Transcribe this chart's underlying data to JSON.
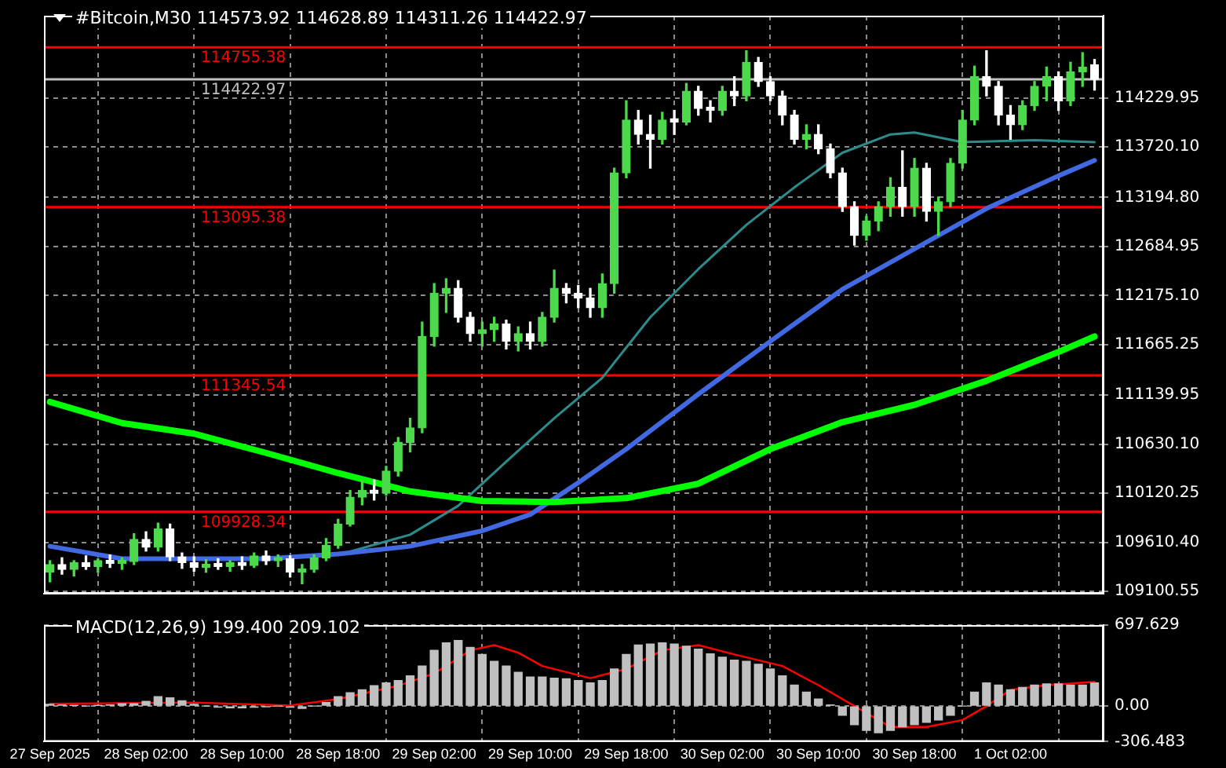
{
  "chart_data": [
    {
      "type": "candlestick",
      "title": "#Bitcoin,M30 114573.92 114628.89 114311.26 114422.97",
      "colors": [
        "#4cd94c",
        "#ffffff",
        "#4cd94c",
        "#ffffff",
        "#4cd94c",
        "#ffffff",
        "#4cd94c",
        "#4cd94c",
        "#ffffff",
        "#4cd94c",
        "#ffffff",
        "#ffffff",
        "#ffffff",
        "#4cd94c",
        "#ffffff",
        "#4cd94c",
        "#ffffff",
        "#4cd94c",
        "#ffffff",
        "#4cd94c",
        "#ffffff",
        "#4cd94c",
        "#4cd94c",
        "#4cd94c",
        "#4cd94c",
        "#4cd94c",
        "#4cd94c",
        "#ffffff",
        "#4cd94c",
        "#4cd94c",
        "#4cd94c",
        "#4cd94c",
        "#4cd94c",
        "#4cd94c",
        "#ffffff",
        "#ffffff",
        "#4cd94c",
        "#4cd94c",
        "#ffffff",
        "#4cd94c",
        "#ffffff",
        "#4cd94c",
        "#4cd94c",
        "#ffffff",
        "#ffffff",
        "#ffffff",
        "#4cd94c",
        "#4cd94c",
        "#4cd94c",
        "#ffffff",
        "#ffffff",
        "#4cd94c",
        "#ffffff",
        "#4cd94c",
        "#ffffff",
        "#ffffff",
        "#4cd94c",
        "#ffffff",
        "#4cd94c",
        "#ffffff",
        "#ffffff",
        "#ffffff",
        "#ffffff",
        "#4cd94c",
        "#ffffff",
        "#ffffff",
        "#ffffff",
        "#ffffff",
        "#4cd94c",
        "#4cd94c",
        "#4cd94c",
        "#ffffff",
        "#4cd94c",
        "#ffffff",
        "#4cd94c",
        "#4cd94c",
        "#4cd94c",
        "#4cd94c",
        "#ffffff",
        "#ffffff",
        "#ffffff",
        "#4cd94c",
        "#4cd94c",
        "#4cd94c",
        "#ffffff",
        "#4cd94c",
        "#4cd94c",
        "#ffffff"
      ],
      "marker": "none",
      "grid": true,
      "legend": false,
      "tick_labels": "y",
      "x": [
        "2025-09-27T18:00",
        "2025-09-27T19:00",
        "2025-09-27T20:00",
        "2025-09-27T21:00",
        "2025-09-27T22:00",
        "2025-09-27T23:00",
        "2025-09-28T00:00",
        "2025-09-28T01:00",
        "2025-09-28T02:00",
        "2025-09-28T03:00",
        "2025-09-28T04:00",
        "2025-09-28T05:00",
        "2025-09-28T06:00",
        "2025-09-28T07:00",
        "2025-09-28T08:00",
        "2025-09-28T09:00",
        "2025-09-28T10:00",
        "2025-09-28T11:00",
        "2025-09-28T12:00",
        "2025-09-28T13:00",
        "2025-09-28T14:00",
        "2025-09-28T15:00",
        "2025-09-28T16:00",
        "2025-09-28T17:00",
        "2025-09-28T18:00",
        "2025-09-28T19:00",
        "2025-09-28T20:00",
        "2025-09-28T21:00",
        "2025-09-28T22:00",
        "2025-09-28T23:00",
        "2025-09-29T00:00",
        "2025-09-29T01:00",
        "2025-09-29T02:00",
        "2025-09-29T03:00",
        "2025-09-29T04:00",
        "2025-09-29T05:00",
        "2025-09-29T06:00",
        "2025-09-29T07:00",
        "2025-09-29T08:00",
        "2025-09-29T09:00",
        "2025-09-29T10:00",
        "2025-09-29T11:00",
        "2025-09-29T12:00",
        "2025-09-29T13:00",
        "2025-09-29T14:00",
        "2025-09-29T15:00",
        "2025-09-29T16:00",
        "2025-09-29T17:00",
        "2025-09-29T18:00",
        "2025-09-29T19:00",
        "2025-09-29T20:00",
        "2025-09-29T21:00",
        "2025-09-29T22:00",
        "2025-09-29T23:00",
        "2025-09-30T00:00",
        "2025-09-30T01:00",
        "2025-09-30T02:00",
        "2025-09-30T03:00",
        "2025-09-30T04:00",
        "2025-09-30T05:00",
        "2025-09-30T06:00",
        "2025-09-30T07:00",
        "2025-09-30T08:00",
        "2025-09-30T09:00",
        "2025-09-30T10:00",
        "2025-09-30T11:00",
        "2025-09-30T12:00",
        "2025-09-30T13:00",
        "2025-09-30T14:00",
        "2025-09-30T15:00",
        "2025-09-30T16:00",
        "2025-09-30T17:00",
        "2025-09-30T18:00",
        "2025-09-30T19:00",
        "2025-09-30T20:00",
        "2025-09-30T21:00",
        "2025-09-30T22:00",
        "2025-09-30T23:00",
        "2025-10-01T00:00",
        "2025-10-01T01:00",
        "2025-10-01T02:00",
        "2025-10-01T03:00",
        "2025-10-01T04:00",
        "2025-10-01T05:00",
        "2025-10-01T06:00",
        "2025-10-01T07:00",
        "2025-10-01T08:00",
        "2025-10-01T09:00"
      ],
      "ohlc": [
        [
          109300,
          109420,
          109200,
          109380
        ],
        [
          109380,
          109450,
          109280,
          109330
        ],
        [
          109330,
          109420,
          109260,
          109400
        ],
        [
          109400,
          109470,
          109330,
          109360
        ],
        [
          109360,
          109440,
          109300,
          109420
        ],
        [
          109420,
          109480,
          109350,
          109390
        ],
        [
          109390,
          109450,
          109330,
          109410
        ],
        [
          109410,
          109700,
          109380,
          109640
        ],
        [
          109640,
          109720,
          109520,
          109560
        ],
        [
          109560,
          109810,
          109520,
          109750
        ],
        [
          109750,
          109800,
          109420,
          109460
        ],
        [
          109460,
          109500,
          109340,
          109400
        ],
        [
          109400,
          109460,
          109310,
          109350
        ],
        [
          109350,
          109430,
          109300,
          109380
        ],
        [
          109380,
          109440,
          109330,
          109360
        ],
        [
          109360,
          109420,
          109310,
          109400
        ],
        [
          109400,
          109460,
          109330,
          109370
        ],
        [
          109370,
          109500,
          109350,
          109470
        ],
        [
          109470,
          109520,
          109380,
          109420
        ],
        [
          109420,
          109480,
          109360,
          109440
        ],
        [
          109440,
          109470,
          109250,
          109300
        ],
        [
          109300,
          109380,
          109180,
          109330
        ],
        [
          109330,
          109480,
          109300,
          109450
        ],
        [
          109450,
          109650,
          109420,
          109580
        ],
        [
          109580,
          109850,
          109550,
          109800
        ],
        [
          109800,
          110150,
          109780,
          110080
        ],
        [
          110080,
          110250,
          110000,
          110150
        ],
        [
          110150,
          110260,
          110050,
          110120
        ],
        [
          110120,
          110400,
          110100,
          110350
        ],
        [
          110350,
          110700,
          110300,
          110650
        ],
        [
          110650,
          110900,
          110550,
          110800
        ],
        [
          110800,
          111900,
          110750,
          111750
        ],
        [
          111750,
          112300,
          111650,
          112200
        ],
        [
          112200,
          112350,
          112000,
          112250
        ],
        [
          112250,
          112330,
          111900,
          111950
        ],
        [
          111950,
          112000,
          111700,
          111780
        ],
        [
          111780,
          111900,
          111650,
          111820
        ],
        [
          111820,
          111950,
          111700,
          111880
        ],
        [
          111880,
          111920,
          111620,
          111700
        ],
        [
          111700,
          111850,
          111600,
          111780
        ],
        [
          111780,
          111900,
          111620,
          111700
        ],
        [
          111700,
          112000,
          111650,
          111950
        ],
        [
          111950,
          112440,
          111900,
          112250
        ],
        [
          112250,
          112300,
          112100,
          112200
        ],
        [
          112200,
          112280,
          112050,
          112150
        ],
        [
          112150,
          112250,
          111950,
          112050
        ],
        [
          112050,
          112400,
          111950,
          112300
        ],
        [
          112300,
          113500,
          112200,
          113450
        ],
        [
          113450,
          114200,
          113400,
          114000
        ],
        [
          114000,
          114100,
          113750,
          113850
        ],
        [
          113850,
          114050,
          113500,
          113800
        ],
        [
          113800,
          114080,
          113750,
          114000
        ],
        [
          114000,
          114100,
          113850,
          113980
        ],
        [
          113980,
          114380,
          113950,
          114300
        ],
        [
          114300,
          114350,
          114050,
          114120
        ],
        [
          114120,
          114200,
          113980,
          114100
        ],
        [
          114100,
          114350,
          114050,
          114300
        ],
        [
          114300,
          114450,
          114150,
          114250
        ],
        [
          114250,
          114720,
          114200,
          114600
        ],
        [
          114600,
          114650,
          114350,
          114400
        ],
        [
          114400,
          114450,
          114200,
          114250
        ],
        [
          114250,
          114300,
          113950,
          114050
        ],
        [
          114050,
          114100,
          113750,
          113800
        ],
        [
          113800,
          113950,
          113700,
          113850
        ],
        [
          113850,
          113950,
          113650,
          113700
        ],
        [
          113700,
          113750,
          113400,
          113450
        ],
        [
          113450,
          113500,
          113050,
          113100
        ],
        [
          113100,
          113150,
          112700,
          112800
        ],
        [
          112800,
          113000,
          112750,
          112950
        ],
        [
          112950,
          113150,
          112850,
          113100
        ],
        [
          113100,
          113400,
          113000,
          113300
        ],
        [
          113300,
          113680,
          113000,
          113100
        ],
        [
          113100,
          113600,
          113000,
          113500
        ],
        [
          113500,
          113550,
          112950,
          113050
        ],
        [
          113050,
          113200,
          112800,
          113150
        ],
        [
          113150,
          113600,
          113100,
          113550
        ],
        [
          113550,
          114100,
          113500,
          114000
        ],
        [
          114000,
          114560,
          113950,
          114450
        ],
        [
          114450,
          114720,
          114250,
          114350
        ],
        [
          114350,
          114400,
          113950,
          114050
        ],
        [
          114050,
          114150,
          113800,
          113950
        ],
        [
          113950,
          114200,
          113900,
          114150
        ],
        [
          114150,
          114400,
          114100,
          114350
        ],
        [
          114350,
          114550,
          114200,
          114450
        ],
        [
          114450,
          114500,
          114100,
          114200
        ],
        [
          114200,
          114600,
          114150,
          114500
        ],
        [
          114500,
          114700,
          114350,
          114550
        ],
        [
          114573.92,
          114628.89,
          114311.26,
          114422.97
        ]
      ],
      "series": [
        {
          "type": "line",
          "color": "#00ff00",
          "x": [
            "2025-09-27T18:00",
            "2025-09-28T00:00",
            "2025-09-28T06:00",
            "2025-09-28T12:00",
            "2025-09-28T18:00",
            "2025-09-29T00:00",
            "2025-09-29T06:00",
            "2025-09-29T12:00",
            "2025-09-29T18:00",
            "2025-09-30T00:00",
            "2025-09-30T06:00",
            "2025-09-30T12:00",
            "2025-09-30T18:00",
            "2025-10-01T00:00",
            "2025-10-01T06:00",
            "2025-10-01T09:00"
          ],
          "values": [
            111070,
            110850,
            110740,
            110540,
            110330,
            110140,
            110040,
            110030,
            110070,
            110220,
            110580,
            110860,
            111040,
            111290,
            111590,
            111750
          ]
        },
        {
          "type": "line",
          "color": "#4169e1",
          "x": [
            "2025-09-27T18:00",
            "2025-09-28T00:00",
            "2025-09-28T06:00",
            "2025-09-28T12:00",
            "2025-09-28T18:00",
            "2025-09-29T00:00",
            "2025-09-29T06:00",
            "2025-09-29T10:00",
            "2025-09-29T14:00",
            "2025-09-29T18:00",
            "2025-09-30T00:00",
            "2025-09-30T06:00",
            "2025-09-30T12:00",
            "2025-09-30T18:00",
            "2025-10-01T00:00",
            "2025-10-01T06:00",
            "2025-10-01T09:00"
          ],
          "values": [
            109570,
            109440,
            109440,
            109440,
            109490,
            109570,
            109730,
            109900,
            110230,
            110580,
            111150,
            111700,
            112240,
            112660,
            113080,
            113420,
            113580
          ]
        },
        {
          "type": "line",
          "color": "#2e8b8b",
          "x": [
            "2025-09-28T18:00",
            "2025-09-29T00:00",
            "2025-09-29T04:00",
            "2025-09-29T08:00",
            "2025-09-29T12:00",
            "2025-09-29T16:00",
            "2025-09-29T20:00",
            "2025-09-30T00:00",
            "2025-09-30T04:00",
            "2025-09-30T08:00",
            "2025-09-30T12:00",
            "2025-09-30T16:00",
            "2025-09-30T18:00",
            "2025-09-30T22:00",
            "2025-10-01T04:00",
            "2025-10-01T09:00"
          ],
          "values": [
            109480,
            109690,
            109990,
            110450,
            110900,
            111320,
            111950,
            112450,
            112910,
            113300,
            113660,
            113850,
            113870,
            113770,
            113790,
            113770
          ]
        }
      ],
      "xlim": [
        "2025-09-27T17:30",
        "2025-10-01T09:45"
      ],
      "xticks": [
        {
          "value": "2025-09-27T18:00",
          "label": null
        },
        {
          "value": "2025-09-28T02:00",
          "label": null
        },
        {
          "value": "2025-09-28T10:00",
          "label": null
        },
        {
          "value": "2025-09-28T18:00",
          "label": null
        },
        {
          "value": "2025-09-29T02:00",
          "label": null
        },
        {
          "value": "2025-09-29T10:00",
          "label": null
        },
        {
          "value": "2025-09-29T18:00",
          "label": null
        },
        {
          "value": "2025-09-30T02:00",
          "label": null
        },
        {
          "value": "2025-09-30T10:00",
          "label": null
        },
        {
          "value": "2025-09-30T18:00",
          "label": null
        },
        {
          "value": "2025-10-01T02:00",
          "label": null
        }
      ],
      "ylim": [
        109077,
        115084
      ],
      "yticks": [
        109100.55,
        {
          "value": 109610.4,
          "label": "109610.40"
        },
        110120.25,
        {
          "value": 110630.1,
          "label": "110630.10"
        },
        111139.95,
        111665.25,
        {
          "value": 112175.1,
          "label": "112175.10"
        },
        112684.95,
        {
          "value": 113194.8,
          "label": "113194.80"
        },
        {
          "value": 113720.1,
          "label": "113720.10"
        },
        114229.95
      ],
      "ref_lines": [
        {
          "axis": "y",
          "value": 114755.38,
          "label": "114755.38",
          "color": "#ff0000"
        },
        {
          "axis": "y",
          "value": 114422.97,
          "label": "114422.97",
          "color": "#c0c0c0"
        },
        {
          "axis": "y",
          "value": 113095.38,
          "label": "113095.38",
          "color": "#ff0000"
        },
        {
          "axis": "y",
          "value": 111345.54,
          "label": "111345.54",
          "color": "#ff0000"
        },
        {
          "axis": "y",
          "value": 109928.34,
          "label": "109928.34",
          "color": "#ff0000"
        }
      ]
    },
    {
      "type": "bar",
      "title": "MACD(12,26,9) 199.400 209.102",
      "marker": "none",
      "grid": true,
      "legend": false,
      "x": [
        "2025-09-27T18:00",
        "2025-09-27T19:00",
        "2025-09-27T20:00",
        "2025-09-27T21:00",
        "2025-09-27T22:00",
        "2025-09-27T23:00",
        "2025-09-28T00:00",
        "2025-09-28T01:00",
        "2025-09-28T02:00",
        "2025-09-28T03:00",
        "2025-09-28T04:00",
        "2025-09-28T05:00",
        "2025-09-28T06:00",
        "2025-09-28T07:00",
        "2025-09-28T08:00",
        "2025-09-28T09:00",
        "2025-09-28T10:00",
        "2025-09-28T11:00",
        "2025-09-28T12:00",
        "2025-09-28T13:00",
        "2025-09-28T14:00",
        "2025-09-28T15:00",
        "2025-09-28T16:00",
        "2025-09-28T17:00",
        "2025-09-28T18:00",
        "2025-09-28T19:00",
        "2025-09-28T20:00",
        "2025-09-28T21:00",
        "2025-09-28T22:00",
        "2025-09-28T23:00",
        "2025-09-29T00:00",
        "2025-09-29T01:00",
        "2025-09-29T02:00",
        "2025-09-29T03:00",
        "2025-09-29T04:00",
        "2025-09-29T05:00",
        "2025-09-29T06:00",
        "2025-09-29T07:00",
        "2025-09-29T08:00",
        "2025-09-29T09:00",
        "2025-09-29T10:00",
        "2025-09-29T11:00",
        "2025-09-29T12:00",
        "2025-09-29T13:00",
        "2025-09-29T14:00",
        "2025-09-29T15:00",
        "2025-09-29T16:00",
        "2025-09-29T17:00",
        "2025-09-29T18:00",
        "2025-09-29T19:00",
        "2025-09-29T20:00",
        "2025-09-29T21:00",
        "2025-09-29T22:00",
        "2025-09-29T23:00",
        "2025-09-30T00:00",
        "2025-09-30T01:00",
        "2025-09-30T02:00",
        "2025-09-30T03:00",
        "2025-09-30T04:00",
        "2025-09-30T05:00",
        "2025-09-30T06:00",
        "2025-09-30T07:00",
        "2025-09-30T08:00",
        "2025-09-30T09:00",
        "2025-09-30T10:00",
        "2025-09-30T11:00",
        "2025-09-30T12:00",
        "2025-09-30T13:00",
        "2025-09-30T14:00",
        "2025-09-30T15:00",
        "2025-09-30T16:00",
        "2025-09-30T17:00",
        "2025-09-30T18:00",
        "2025-09-30T19:00",
        "2025-09-30T20:00",
        "2025-09-30T21:00",
        "2025-09-30T22:00",
        "2025-09-30T23:00",
        "2025-10-01T00:00",
        "2025-10-01T01:00",
        "2025-10-01T02:00",
        "2025-10-01T03:00",
        "2025-10-01T04:00",
        "2025-10-01T05:00",
        "2025-10-01T06:00",
        "2025-10-01T07:00",
        "2025-10-01T08:00",
        "2025-10-01T09:00"
      ],
      "series": [
        {
          "type": "bar",
          "color": "#c0c0c0",
          "values": [
            15,
            10,
            5,
            0,
            5,
            10,
            20,
            20,
            40,
            80,
            70,
            45,
            15,
            0,
            -10,
            -15,
            -15,
            -10,
            -5,
            0,
            -10,
            -20,
            0,
            30,
            80,
            115,
            140,
            175,
            200,
            220,
            260,
            345,
            480,
            545,
            565,
            505,
            445,
            385,
            345,
            290,
            250,
            250,
            240,
            235,
            220,
            200,
            220,
            320,
            445,
            525,
            535,
            545,
            535,
            515,
            490,
            450,
            420,
            395,
            385,
            360,
            320,
            260,
            180,
            120,
            60,
            10,
            -80,
            -160,
            -210,
            -230,
            -210,
            -180,
            -160,
            -140,
            -120,
            -80,
            0,
            120,
            200,
            180,
            140,
            160,
            180,
            190,
            190,
            180,
            180,
            199.4
          ]
        },
        {
          "type": "line",
          "color": "#ff0000",
          "x": [
            "2025-09-27T18:00",
            "2025-09-28T06:00",
            "2025-09-28T14:00",
            "2025-09-28T18:00",
            "2025-09-28T23:00",
            "2025-09-29T02:00",
            "2025-09-29T05:00",
            "2025-09-29T07:00",
            "2025-09-29T09:00",
            "2025-09-29T11:00",
            "2025-09-29T15:00",
            "2025-09-29T18:00",
            "2025-09-29T21:00",
            "2025-09-30T00:00",
            "2025-09-30T03:00",
            "2025-09-30T07:00",
            "2025-09-30T10:00",
            "2025-09-30T13:00",
            "2025-09-30T16:00",
            "2025-09-30T19:00",
            "2025-09-30T22:00",
            "2025-10-01T00:00",
            "2025-10-01T02:00",
            "2025-10-01T05:00",
            "2025-10-01T09:00"
          ],
          "values": [
            20,
            30,
            5,
            60,
            175,
            280,
            480,
            525,
            460,
            345,
            240,
            320,
            480,
            525,
            445,
            345,
            180,
            0,
            -180,
            -180,
            -120,
            0,
            140,
            180,
            209.102
          ]
        }
      ],
      "xlim": [
        "2025-09-27T17:30",
        "2025-10-01T09:45"
      ],
      "xticks": [
        {
          "value": "2025-09-27T18:00",
          "label": "27 Sep 2025"
        },
        {
          "value": "2025-09-28T02:00",
          "label": "28 Sep 02:00"
        },
        {
          "value": "2025-09-28T10:00",
          "label": "28 Sep 10:00"
        },
        {
          "value": "2025-09-28T18:00",
          "label": "28 Sep 18:00"
        },
        {
          "value": "2025-09-29T02:00",
          "label": "29 Sep 02:00"
        },
        {
          "value": "2025-09-29T10:00",
          "label": "29 Sep 10:00"
        },
        {
          "value": "2025-09-29T18:00",
          "label": "29 Sep 18:00"
        },
        {
          "value": "2025-09-30T02:00",
          "label": "30 Sep 02:00"
        },
        {
          "value": "2025-09-30T10:00",
          "label": "30 Sep 10:00"
        },
        {
          "value": "2025-09-30T18:00",
          "label": "30 Sep 18:00"
        },
        {
          "value": "2025-10-01T02:00",
          "label": "1 Oct 02:00"
        }
      ],
      "ylim": [
        -306.483,
        697.629
      ],
      "yticks": [
        -306.483,
        {
          "value": 0,
          "label": "0.00"
        },
        697.629
      ]
    }
  ]
}
